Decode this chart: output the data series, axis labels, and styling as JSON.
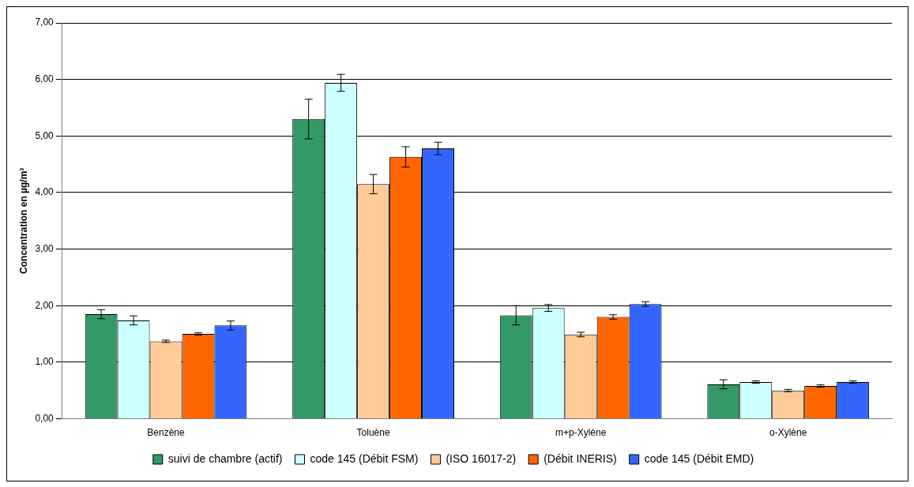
{
  "chart_data": {
    "type": "bar",
    "ylabel": "Concentration en µg/m³",
    "categories": [
      "Benzène",
      "Toluène",
      "m+p-Xylène",
      "o-Xylène"
    ],
    "series": [
      {
        "name": "suivi de chambre (actif)",
        "color": "#339966",
        "values": [
          1.85,
          5.3,
          1.83,
          0.61
        ],
        "errors": [
          0.08,
          0.35,
          0.17,
          0.08
        ]
      },
      {
        "name": "code 145 (Débit FSM)",
        "color": "#ccffff",
        "values": [
          1.74,
          5.94,
          1.96,
          0.65
        ],
        "errors": [
          0.08,
          0.15,
          0.06,
          0.02
        ]
      },
      {
        "name": "(ISO 16017-2)",
        "color": "#ffcc99",
        "values": [
          1.37,
          4.15,
          1.49,
          0.5
        ],
        "errors": [
          0.02,
          0.17,
          0.04,
          0.02
        ]
      },
      {
        "name": "(Débit INERIS)",
        "color": "#ff6600",
        "values": [
          1.5,
          4.63,
          1.8,
          0.58
        ],
        "errors": [
          0.02,
          0.18,
          0.04,
          0.02
        ]
      },
      {
        "name": "code 145 (Débit EMD)",
        "color": "#3366ff",
        "values": [
          1.65,
          4.78,
          2.03,
          0.65
        ],
        "errors": [
          0.08,
          0.11,
          0.04,
          0.02
        ]
      }
    ],
    "ylim": [
      0,
      7
    ],
    "yticks": [
      {
        "value": 0,
        "label": "0,00"
      },
      {
        "value": 1,
        "label": "1,00"
      },
      {
        "value": 2,
        "label": "2,00"
      },
      {
        "value": 3,
        "label": "3,00"
      },
      {
        "value": 4,
        "label": "4,00"
      },
      {
        "value": 5,
        "label": "5,00"
      },
      {
        "value": 6,
        "label": "6,00"
      },
      {
        "value": 7,
        "label": "7,00"
      }
    ],
    "grid": "y",
    "legend": "bottom"
  }
}
